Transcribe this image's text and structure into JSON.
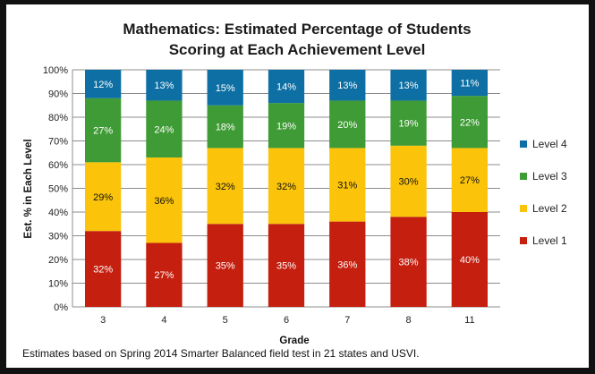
{
  "chart_data": {
    "type": "bar",
    "stacked": true,
    "title": [
      "Mathematics:  Estimated Percentage of Students",
      "Scoring at Each Achievement Level"
    ],
    "xlabel": "Grade",
    "ylabel": "Est. % in Each Level",
    "ylim": [
      0,
      100
    ],
    "yticks": [
      "0%",
      "10%",
      "20%",
      "30%",
      "40%",
      "50%",
      "60%",
      "70%",
      "80%",
      "90%",
      "100%"
    ],
    "categories": [
      "3",
      "4",
      "5",
      "6",
      "7",
      "8",
      "11"
    ],
    "series": [
      {
        "name": "Level 1",
        "color": "#c41f0f",
        "values": [
          32,
          27,
          35,
          35,
          36,
          38,
          40
        ],
        "labels": [
          "32%",
          "27%",
          "35%",
          "35%",
          "36%",
          "38%",
          "40%"
        ],
        "label_color": "#ffffff"
      },
      {
        "name": "Level 2",
        "color": "#fbc40a",
        "values": [
          29,
          36,
          32,
          32,
          31,
          30,
          27
        ],
        "labels": [
          "29%",
          "36%",
          "32%",
          "32%",
          "31%",
          "30%",
          "27%"
        ],
        "label_color": "#111111"
      },
      {
        "name": "Level 3",
        "color": "#3f9b35",
        "values": [
          27,
          24,
          18,
          19,
          20,
          19,
          22
        ],
        "labels": [
          "27%",
          "24%",
          "18%",
          "19%",
          "20%",
          "19%",
          "22%"
        ],
        "label_color": "#ffffff"
      },
      {
        "name": "Level 4",
        "color": "#0d6fa3",
        "values": [
          12,
          13,
          15,
          14,
          13,
          13,
          11
        ],
        "labels": [
          "12%",
          "13%",
          "15%",
          "14%",
          "13%",
          "13%",
          "11%"
        ],
        "label_color": "#ffffff"
      }
    ],
    "legend_order": [
      "Level 4",
      "Level 3",
      "Level 2",
      "Level 1"
    ],
    "legend_position": "right",
    "grid": true,
    "gridline_color": "#8c8c8c",
    "footnote": "Estimates based on Spring 2014 Smarter Balanced field test in 21 states and USVI."
  }
}
